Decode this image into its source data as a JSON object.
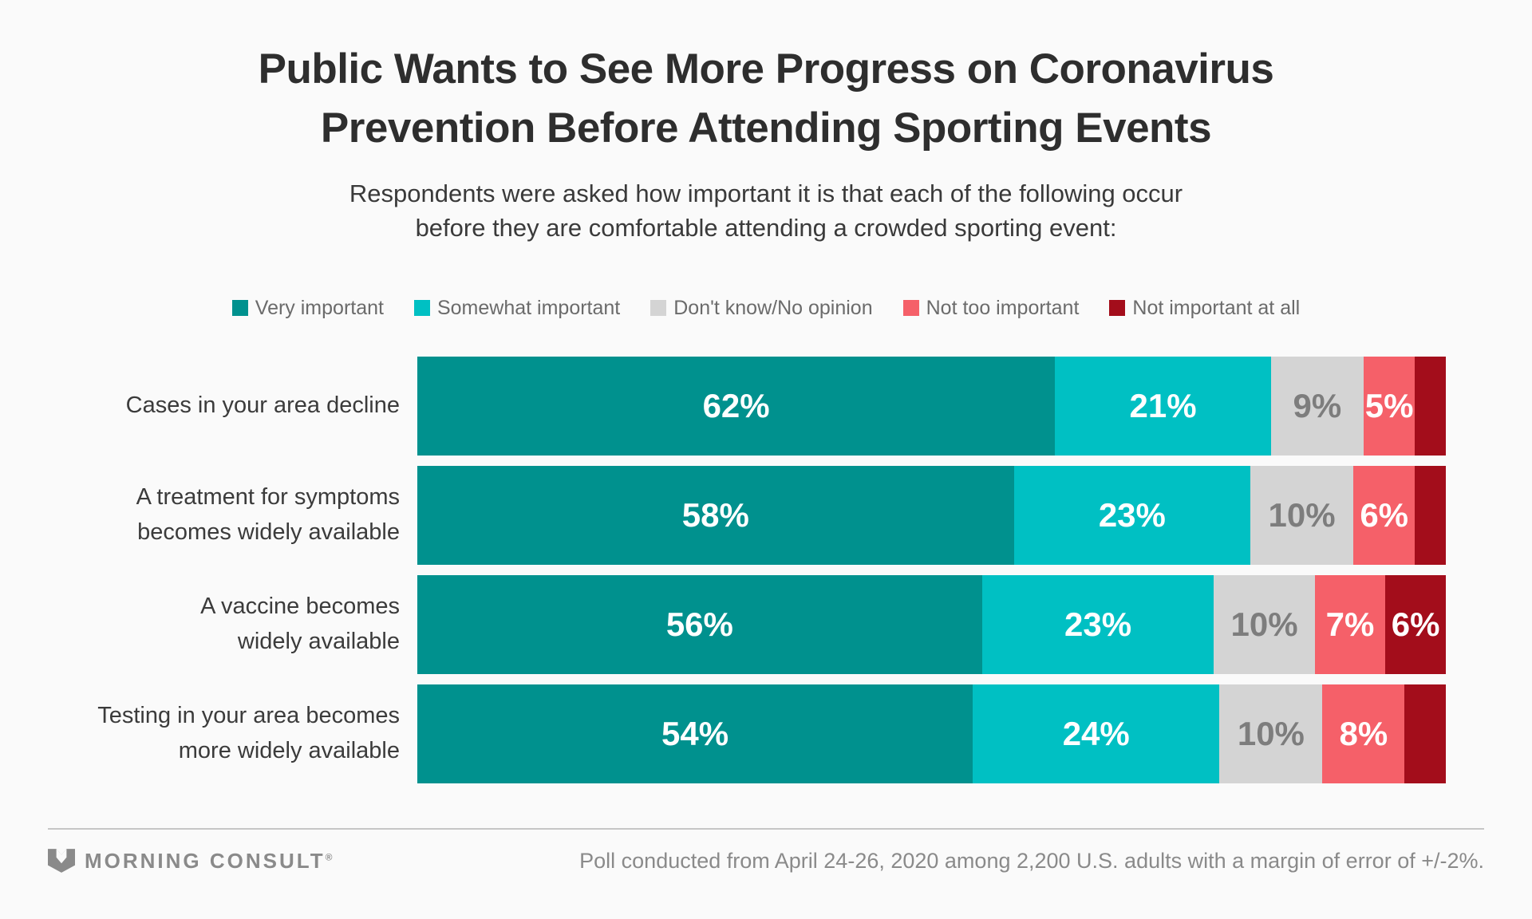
{
  "header": {
    "title_lines": [
      "Public Wants to See More Progress on Coronavirus",
      "Prevention Before Attending Sporting Events"
    ],
    "subtitle_lines": [
      "Respondents were asked how important it is that each of the following occur",
      "before they are comfortable attending a crowded sporting event:"
    ]
  },
  "colors": {
    "background": "#FAFAFA",
    "title_text": "#2e2e2e",
    "category_text": "#3b3b3b",
    "legend_text": "#6b6b6b",
    "footer_text": "#8a8a8a",
    "divider": "#c6c6c6"
  },
  "chart_data": {
    "type": "bar",
    "subtype": "horizontal_stacked_percent",
    "grid": false,
    "legend_position": "top-center",
    "categories": [
      "Cases in your area decline",
      "A treatment for symptoms becomes widely available",
      "A vaccine becomes widely available",
      "Testing in your area becomes more widely available"
    ],
    "category_lines": [
      [
        "Cases in your area decline"
      ],
      [
        "A treatment for symptoms",
        "becomes widely available"
      ],
      [
        "A vaccine becomes",
        "widely available"
      ],
      [
        "Testing in your area becomes",
        "more widely available"
      ]
    ],
    "series": [
      {
        "key": "very-important",
        "name": "Very important",
        "color": "#00918E",
        "label_color": "#ffffff",
        "values": [
          62,
          58,
          56,
          54
        ]
      },
      {
        "key": "somewhat-important",
        "name": "Somewhat important",
        "color": "#00C0C3",
        "label_color": "#ffffff",
        "values": [
          21,
          23,
          23,
          24
        ]
      },
      {
        "key": "dont-know-no-opinion",
        "name": "Don't know/No opinion",
        "color": "#D4D4D4",
        "label_color": "#7d7d7d",
        "values": [
          9,
          10,
          10,
          10
        ]
      },
      {
        "key": "not-too-important",
        "name": "Not too important",
        "color": "#F56069",
        "label_color": "#ffffff",
        "values": [
          5,
          6,
          7,
          8
        ]
      },
      {
        "key": "not-important-at-all",
        "name": "Not important at all",
        "color": "#A30D1B",
        "label_color": "#ffffff",
        "values": [
          3,
          3,
          6,
          4
        ]
      }
    ],
    "value_labels": [
      [
        "62%",
        "21%",
        "9%",
        "5%",
        ""
      ],
      [
        "58%",
        "23%",
        "10%",
        "6%",
        ""
      ],
      [
        "56%",
        "23%",
        "10%",
        "7%",
        "6%"
      ],
      [
        "54%",
        "24%",
        "10%",
        "8%",
        ""
      ]
    ],
    "xlim": [
      0,
      100
    ]
  },
  "footer": {
    "brand": "MORNING CONSULT",
    "brand_reg": "®",
    "source": "Poll conducted from April 24-26, 2020 among 2,200 U.S. adults with a margin of error of +/-2%."
  }
}
